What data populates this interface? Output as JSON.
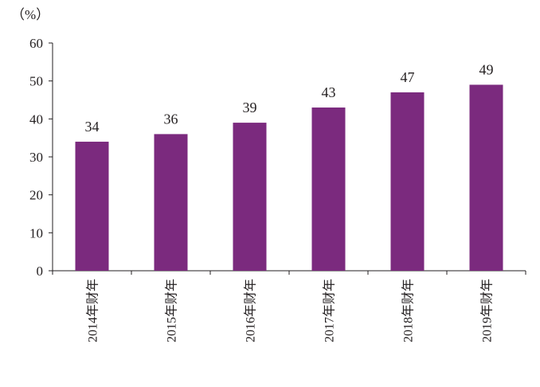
{
  "chart_data": {
    "type": "bar",
    "unit_label": "（%）",
    "categories": [
      "2014年财年",
      "2015年财年",
      "2016年财年",
      "2017年财年",
      "2018年财年",
      "2019年财年"
    ],
    "values": [
      34,
      36,
      39,
      43,
      47,
      49
    ],
    "data_labels": [
      "34",
      "36",
      "39",
      "43",
      "47",
      "49"
    ],
    "ylim": [
      0,
      60
    ],
    "yticks": [
      0,
      10,
      20,
      30,
      40,
      50,
      60
    ],
    "ytick_labels": [
      "0",
      "10",
      "20",
      "30",
      "40",
      "50",
      "60"
    ],
    "bar_color": "#7b2a7e",
    "grid": false,
    "legend": "none"
  }
}
